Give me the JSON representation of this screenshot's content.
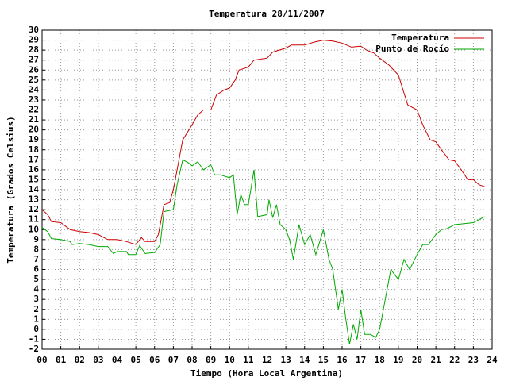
{
  "chart_data": {
    "type": "line",
    "title": "Temperatura 28/11/2007",
    "xlabel": "Tiempo (Hora Local Argentina)",
    "ylabel": "Temperatura (Grados Celsius)",
    "xlim": [
      0,
      24
    ],
    "ylim": [
      -2,
      30
    ],
    "grid": true,
    "legend": "top-right",
    "xticks": [
      {
        "value": 0,
        "label": "00"
      },
      {
        "value": 1,
        "label": "01"
      },
      {
        "value": 2,
        "label": "02"
      },
      {
        "value": 3,
        "label": "03"
      },
      {
        "value": 4,
        "label": "04"
      },
      {
        "value": 5,
        "label": "05"
      },
      {
        "value": 6,
        "label": "06"
      },
      {
        "value": 7,
        "label": "07"
      },
      {
        "value": 8,
        "label": "08"
      },
      {
        "value": 9,
        "label": "09"
      },
      10,
      11,
      12,
      13,
      14,
      15,
      16,
      17,
      18,
      19,
      20,
      21,
      22,
      23,
      24
    ],
    "yticks": [
      -2,
      -1,
      0,
      1,
      2,
      3,
      4,
      5,
      6,
      7,
      8,
      9,
      10,
      11,
      12,
      13,
      14,
      15,
      16,
      17,
      18,
      19,
      20,
      21,
      22,
      23,
      24,
      25,
      26,
      27,
      28,
      29,
      30
    ],
    "series": [
      {
        "name": "Temperatura",
        "color": "#cc0000",
        "x": [
          0,
          0.3,
          0.5,
          1,
          1.5,
          2,
          2.5,
          3,
          3.5,
          4,
          4.5,
          5,
          5.3,
          5.5,
          6,
          6.2,
          6.5,
          6.8,
          7,
          7.3,
          7.5,
          8,
          8.3,
          8.6,
          9,
          9.3,
          9.7,
          10,
          10.3,
          10.5,
          11,
          11.3,
          12,
          12.3,
          13,
          13.3,
          14,
          14.5,
          15,
          15.5,
          16,
          16.5,
          17,
          17.3,
          17.7,
          18,
          18.5,
          19,
          19.5,
          20,
          20.3,
          20.7,
          21,
          21.3,
          21.7,
          22,
          22.5,
          22.7,
          23,
          23.3,
          23.6
        ],
        "values": [
          12,
          11.5,
          10.8,
          10.7,
          10,
          9.8,
          9.7,
          9.5,
          9,
          9,
          8.8,
          8.5,
          9.2,
          8.8,
          8.8,
          9.5,
          12.5,
          12.7,
          14,
          17,
          19,
          20.5,
          21.5,
          22,
          22,
          23.5,
          24,
          24.2,
          25,
          26,
          26.3,
          27,
          27.2,
          27.8,
          28.2,
          28.5,
          28.5,
          28.8,
          29,
          28.9,
          28.7,
          28.3,
          28.4,
          28,
          27.7,
          27.2,
          26.5,
          25.5,
          22.5,
          22,
          20.5,
          19,
          18.8,
          18,
          17,
          16.9,
          15.6,
          15,
          15,
          14.5,
          14.3
        ]
      },
      {
        "name": "Punto de Rocío",
        "color": "#00aa00",
        "x": [
          0,
          0.3,
          0.5,
          1,
          1.5,
          1.6,
          2,
          2.5,
          3,
          3.5,
          3.8,
          4,
          4.5,
          4.6,
          5,
          5.2,
          5.5,
          6,
          6.3,
          6.5,
          7,
          7.2,
          7.5,
          7.8,
          8,
          8.3,
          8.6,
          9,
          9.2,
          9.5,
          10,
          10.2,
          10.4,
          10.6,
          10.8,
          11,
          11.3,
          11.5,
          12,
          12.1,
          12.3,
          12.5,
          12.7,
          13,
          13.2,
          13.4,
          13.7,
          14,
          14.3,
          14.6,
          15,
          15.3,
          15.5,
          15.8,
          16,
          16.2,
          16.4,
          16.6,
          16.8,
          17,
          17.2,
          17.5,
          17.8,
          18,
          18.2,
          18.4,
          18.6,
          18.8,
          19,
          19.3,
          19.6,
          20,
          20.3,
          20.6,
          21,
          21.3,
          21.6,
          22,
          22.5,
          23,
          23.3,
          23.6
        ],
        "values": [
          10.2,
          9.8,
          9.1,
          9,
          8.8,
          8.5,
          8.6,
          8.5,
          8.3,
          8.3,
          7.6,
          7.8,
          7.8,
          7.5,
          7.5,
          8.4,
          7.6,
          7.7,
          8.5,
          11.8,
          12,
          14.5,
          17,
          16.7,
          16.4,
          16.8,
          16,
          16.5,
          15.5,
          15.5,
          15.2,
          15.5,
          11.5,
          13.5,
          12.5,
          12.5,
          16,
          11.3,
          11.5,
          13,
          11.2,
          12.5,
          10.5,
          10,
          9,
          7,
          10.5,
          8.5,
          9.5,
          7.5,
          10,
          7,
          6,
          2,
          4,
          1,
          -1.5,
          0.5,
          -1,
          2,
          -0.5,
          -0.5,
          -0.8,
          0,
          2,
          4,
          6,
          5.5,
          5,
          7,
          6,
          7.5,
          8.5,
          8.5,
          9.5,
          10,
          10.1,
          10.5,
          10.6,
          10.7,
          11,
          11.3
        ]
      }
    ]
  }
}
